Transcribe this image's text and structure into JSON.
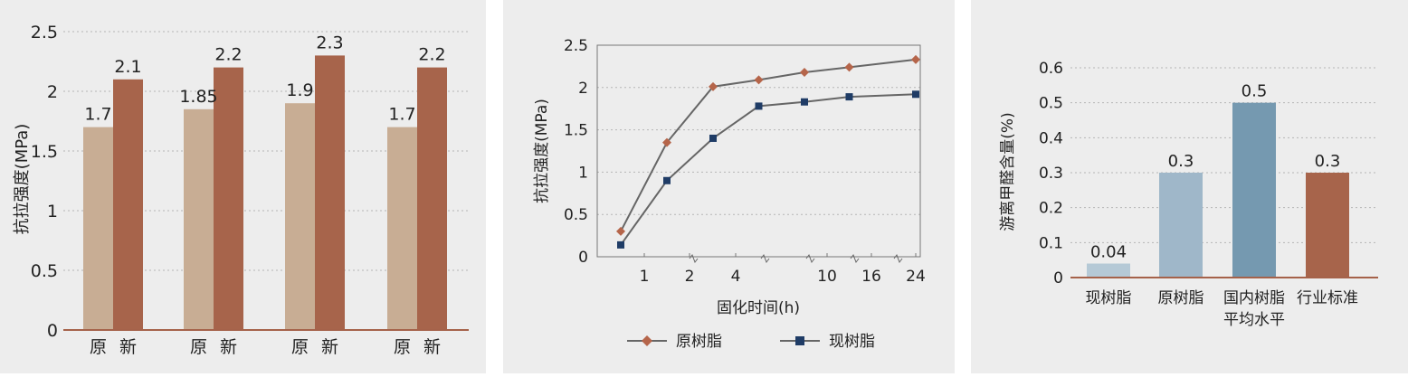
{
  "chart_data": [
    {
      "type": "bar",
      "ylabel": "抗拉强度(MPa)",
      "ylim": [
        0,
        2.5
      ],
      "yticks": [
        "0",
        "0.5",
        "1",
        "1.5",
        "2",
        "2.5"
      ],
      "grid": true,
      "series_labels": [
        "原",
        "新"
      ],
      "groups": [
        {
          "values": [
            1.7,
            2.1
          ],
          "labels": [
            "1.7",
            "2.1"
          ]
        },
        {
          "values": [
            1.85,
            2.2
          ],
          "labels": [
            "1.85",
            "2.2"
          ]
        },
        {
          "values": [
            1.9,
            2.3
          ],
          "labels": [
            "1.9",
            "2.3"
          ]
        },
        {
          "values": [
            1.7,
            2.2
          ],
          "labels": [
            "1.7",
            "2.2"
          ]
        }
      ],
      "colors": [
        "#c8ad94",
        "#a7644b"
      ]
    },
    {
      "type": "line",
      "xlabel": "固化时间(h)",
      "ylabel": "抗拉强度(MPa)",
      "ylim": [
        0,
        2.5
      ],
      "yticks": [
        "0",
        "0.5",
        "1",
        "1.5",
        "2",
        "2.5"
      ],
      "xticks": [
        "1",
        "2",
        "4",
        "10",
        "16",
        "24"
      ],
      "x": [
        0.5,
        1.5,
        3,
        5,
        8,
        13,
        24
      ],
      "grid": true,
      "legend_position": "bottom",
      "series": [
        {
          "name": "原树脂",
          "marker": "diamond",
          "color": "#b5654a",
          "values": [
            0.3,
            1.35,
            2.01,
            2.09,
            2.18,
            2.24,
            2.33
          ]
        },
        {
          "name": "现树脂",
          "marker": "square",
          "color": "#1f3c66",
          "values": [
            0.14,
            0.9,
            1.4,
            1.78,
            1.83,
            1.89,
            1.92
          ]
        }
      ]
    },
    {
      "type": "bar",
      "ylabel": "游离甲醛含量(%)",
      "ylim": [
        0,
        0.6
      ],
      "yticks": [
        "0",
        "0.1",
        "0.2",
        "0.3",
        "0.4",
        "0.5",
        "0.6"
      ],
      "grid": true,
      "categories": [
        {
          "line1": "现树脂",
          "line2": ""
        },
        {
          "line1": "原树脂",
          "line2": ""
        },
        {
          "line1": "国内树脂",
          "line2": "平均水平"
        },
        {
          "line1": "行业标准",
          "line2": ""
        }
      ],
      "values": [
        0.04,
        0.3,
        0.5,
        0.3
      ],
      "labels": [
        "0.04",
        "0.3",
        "0.5",
        "0.3"
      ],
      "colors": [
        "#b5c9d6",
        "#9fb7c9",
        "#7599b0",
        "#a7644b"
      ]
    }
  ]
}
